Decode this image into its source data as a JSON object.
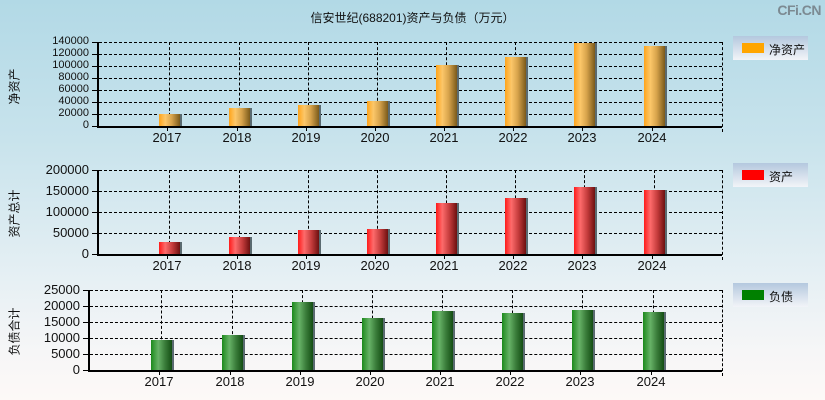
{
  "header": {
    "title": "信安世纪(688201)资产与负债（万元）",
    "watermark": "CFi.CN"
  },
  "colors": {
    "net_assets": "#FFA500",
    "assets": "#FF0000",
    "liabilities": "#008000"
  },
  "chart_data": [
    {
      "type": "bar",
      "title": "信安世纪(688201)资产与负债（万元）",
      "ylabel": "净资产",
      "legend": "净资产",
      "categories": [
        "2017",
        "2018",
        "2019",
        "2020",
        "2021",
        "2022",
        "2023",
        "2024"
      ],
      "values": [
        19300,
        29300,
        35500,
        42200,
        102200,
        115500,
        138800,
        133800
      ],
      "yticks": [
        "140000",
        "120000",
        "100000",
        "80000",
        "60000",
        "40000",
        "20000",
        "0"
      ],
      "ylim": [
        0,
        140000
      ],
      "grid": true,
      "legend_position": "right"
    },
    {
      "type": "bar",
      "ylabel": "资产总计",
      "legend": "资产",
      "categories": [
        "2017",
        "2018",
        "2019",
        "2020",
        "2021",
        "2022",
        "2023",
        "2024"
      ],
      "values": [
        29300,
        41200,
        57900,
        60200,
        122100,
        134000,
        160200,
        153100
      ],
      "yticks": [
        "200000",
        "150000",
        "100000",
        "50000",
        "0"
      ],
      "ylim": [
        0,
        200000
      ],
      "grid": true,
      "legend_position": "right"
    },
    {
      "type": "bar",
      "ylabel": "负债合计",
      "legend": "负债",
      "categories": [
        "2017",
        "2018",
        "2019",
        "2020",
        "2021",
        "2022",
        "2023",
        "2024"
      ],
      "values": [
        9470,
        11030,
        21340,
        16340,
        18530,
        17910,
        18840,
        18220
      ],
      "yticks": [
        "25000",
        "20000",
        "15000",
        "10000",
        "5000",
        "0"
      ],
      "ylim": [
        0,
        25000
      ],
      "grid": true,
      "legend_position": "right"
    }
  ]
}
